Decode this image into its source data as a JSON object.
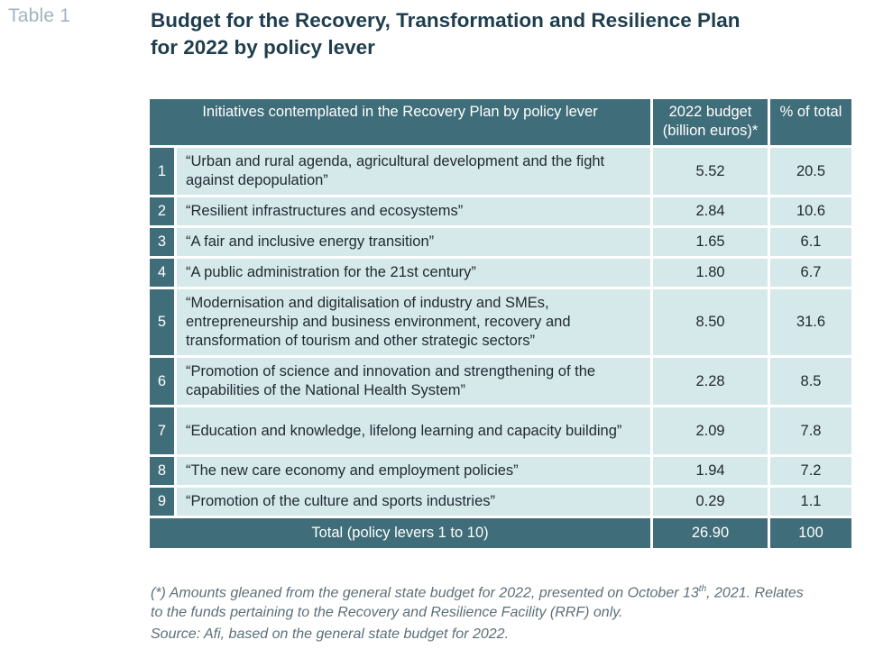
{
  "table_label": "Table 1",
  "title": {
    "line1": "Budget for the Recovery, Transformation and Resilience Plan",
    "line2": "for 2022 by policy lever"
  },
  "table": {
    "headers": {
      "initiatives": "Initiatives contemplated in the Recovery Plan by policy lever",
      "budget_line1": "2022 budget",
      "budget_line2": "(billion euros)*",
      "pct": "% of total"
    },
    "rows": [
      {
        "num": "1",
        "desc": "“Urban and rural agenda, agricultural development and the fight against depopulation”",
        "budget": "5.52",
        "pct": "20.5"
      },
      {
        "num": "2",
        "desc": "“Resilient infrastructures and ecosystems”",
        "budget": "2.84",
        "pct": "10.6"
      },
      {
        "num": "3",
        "desc": "“A fair and inclusive energy transition”",
        "budget": "1.65",
        "pct": "6.1"
      },
      {
        "num": "4",
        "desc": "“A public administration for the 21st century”",
        "budget": "1.80",
        "pct": "6.7"
      },
      {
        "num": "5",
        "desc": "“Modernisation and digitalisation of industry and SMEs, entrepreneurship and business environment, recovery and transformation of tourism and other strategic sectors”",
        "budget": "8.50",
        "pct": "31.6"
      },
      {
        "num": "6",
        "desc": "“Promotion of science and innovation and strengthening of the capabilities of the National Health System”",
        "budget": "2.28",
        "pct": "8.5"
      },
      {
        "num": "7",
        "desc": "“Education and knowledge, lifelong learning and capacity building”",
        "budget": "2.09",
        "pct": "7.8"
      },
      {
        "num": "8",
        "desc": "“The new care economy and employment policies”",
        "budget": "1.94",
        "pct": "7.2"
      },
      {
        "num": "9",
        "desc": "“Promotion of the culture and sports industries”",
        "budget": "0.29",
        "pct": "1.1"
      }
    ],
    "total": {
      "label": "Total (policy levers 1 to 10)",
      "budget": "26.90",
      "pct": "100"
    }
  },
  "footnote": {
    "part1": "(*) Amounts gleaned from the general state budget for 2022, presented on October 13",
    "sup": "th",
    "part2": ", 2021. Relates",
    "line2": "to the funds pertaining to the Recovery and Resilience Facility (RRF) only."
  },
  "source": "Source: Afi, based on the general state budget for 2022."
}
